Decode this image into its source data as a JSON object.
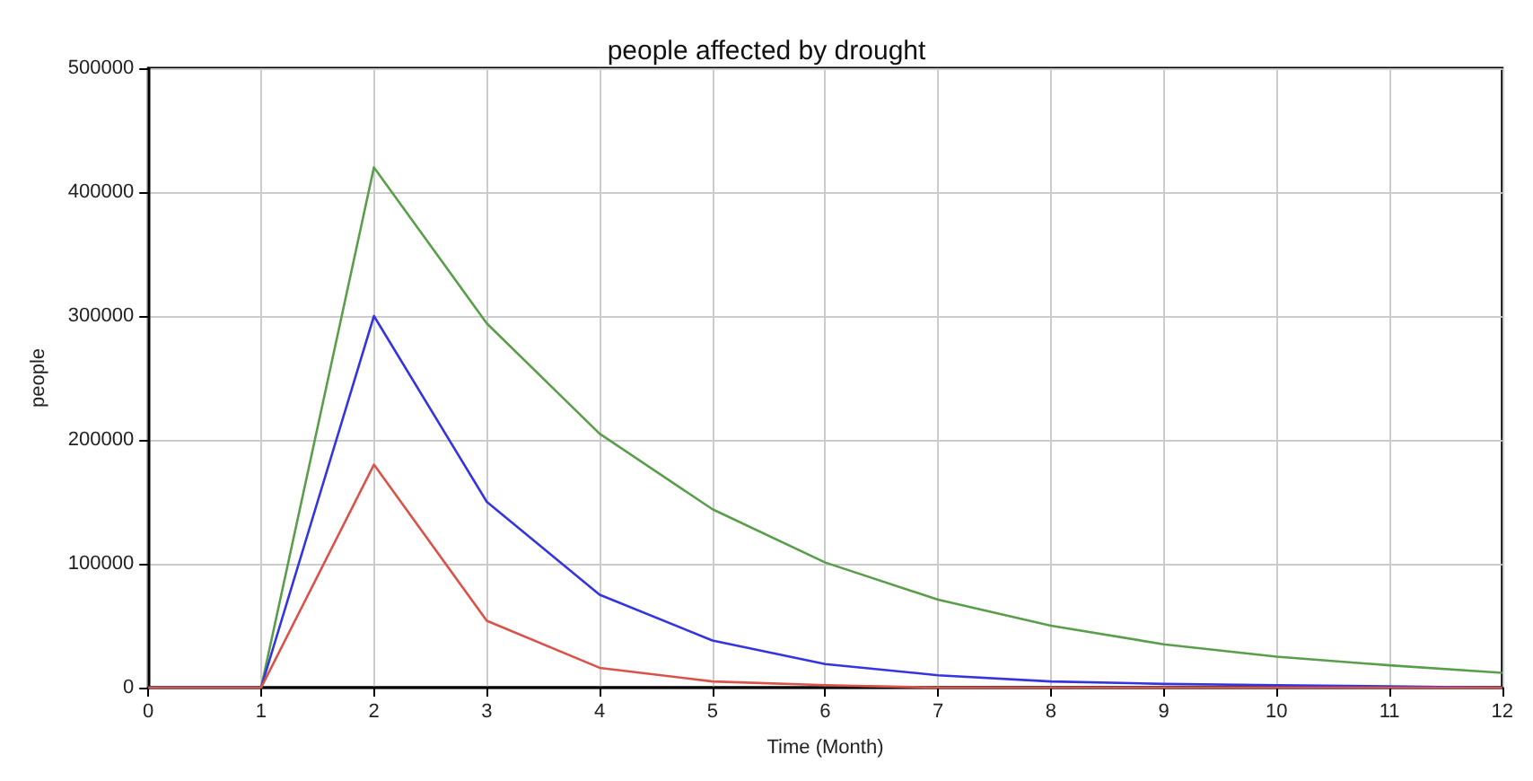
{
  "chart_data": {
    "type": "line",
    "title": "people affected by drought",
    "xlabel": "Time (Month)",
    "ylabel": "people",
    "x": [
      0,
      1,
      2,
      3,
      4,
      5,
      6,
      7,
      8,
      9,
      10,
      11,
      12
    ],
    "series": [
      {
        "color": "#5a9e4b",
        "values": [
          0,
          0,
          420000,
          294000,
          205000,
          144000,
          101000,
          71000,
          50000,
          35000,
          25000,
          18000,
          12000
        ]
      },
      {
        "color": "#3535e0",
        "values": [
          0,
          0,
          300000,
          150000,
          75000,
          38000,
          19000,
          10000,
          5000,
          3000,
          2000,
          1000,
          0
        ]
      },
      {
        "color": "#d9534a",
        "values": [
          0,
          0,
          180000,
          54000,
          16000,
          5000,
          2000,
          0,
          0,
          0,
          0,
          0,
          0
        ]
      }
    ],
    "xlim": [
      0,
      12
    ],
    "xticks": [
      0,
      1,
      2,
      3,
      4,
      5,
      6,
      7,
      8,
      9,
      10,
      11,
      12
    ],
    "ylim": [
      0,
      500000
    ],
    "yticks": [
      0,
      100000,
      200000,
      300000,
      400000,
      500000
    ],
    "grid": true,
    "marker": "none",
    "line_style": "solid"
  }
}
